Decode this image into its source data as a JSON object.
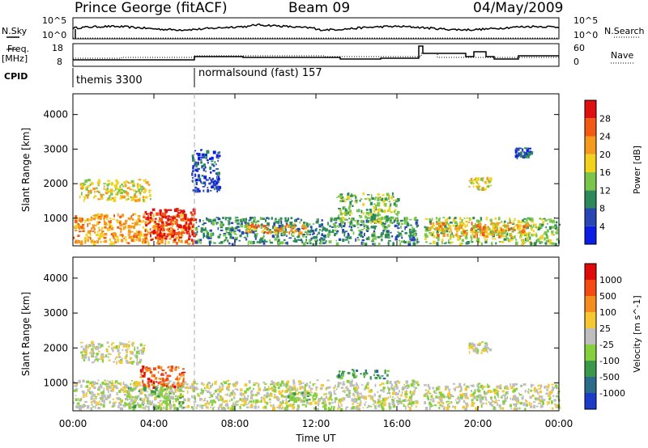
{
  "header": {
    "station": "Prince George (fitACF)",
    "beam": "Beam 09",
    "date": "04/May/2009"
  },
  "side_labels": {
    "nsky": "N.Sky",
    "nsearch": "N.Search",
    "freq": "Freq.",
    "freq_unit": "[MHz]",
    "nave": "Nave",
    "cpid": "CPID"
  },
  "noise_axis": {
    "left_ticks": [
      "10^5",
      "10^0"
    ],
    "right_ticks": [
      "10^5",
      "10^0"
    ]
  },
  "freq_axis": {
    "left_ticks": [
      "18",
      "8"
    ],
    "right_ticks": [
      "60",
      "0"
    ]
  },
  "cpid_labels": [
    "themis 3300",
    "normalsound (fast) 157"
  ],
  "colors": {
    "scatter_blue": "#1c3fc8",
    "ground_grey": "#bebebe",
    "line": "#000000"
  },
  "chart_data": [
    {
      "type": "heatmap",
      "title": "Prince George (fitACF) Beam 09 04/May/2009",
      "xlabel": "Time UT",
      "ylabel": "Slant Range [km]",
      "x_ticks": [
        "00:00",
        "04:00",
        "08:00",
        "12:00",
        "16:00",
        "20:00",
        "00:00"
      ],
      "y_ticks": [
        1000,
        2000,
        3000,
        4000
      ],
      "xlim_hours": [
        0,
        24
      ],
      "ylim_km": [
        200,
        4600
      ],
      "colorbar": {
        "label": "Power [dB]",
        "ticks": [
          "4",
          "8",
          "12",
          "16",
          "20",
          "24",
          "28"
        ],
        "colors": [
          "#0b1ee6",
          "#2846b4",
          "#2f8a5a",
          "#7ac64a",
          "#f2d21c",
          "#f59a1c",
          "#f25a14",
          "#e01010"
        ]
      },
      "regions": [
        {
          "t0": 0.0,
          "t1": 6.0,
          "r0": 280,
          "r1": 1150,
          "level": 5
        },
        {
          "t0": 3.5,
          "t1": 6.0,
          "r0": 400,
          "r1": 1300,
          "level": 7
        },
        {
          "t0": 0.3,
          "t1": 3.8,
          "r0": 1550,
          "r1": 2150,
          "level": 4
        },
        {
          "t0": 6.0,
          "t1": 17.0,
          "r0": 280,
          "r1": 1050,
          "level": 2
        },
        {
          "t0": 8.5,
          "t1": 11.5,
          "r0": 580,
          "r1": 850,
          "level": 5
        },
        {
          "t0": 13.0,
          "t1": 16.0,
          "r0": 900,
          "r1": 1750,
          "level": 3
        },
        {
          "t0": 17.3,
          "t1": 24.0,
          "r0": 280,
          "r1": 1050,
          "level": 3
        },
        {
          "t0": 17.5,
          "t1": 22.5,
          "r0": 500,
          "r1": 900,
          "level": 5
        },
        {
          "t0": 19.5,
          "t1": 20.6,
          "r0": 1850,
          "r1": 2200,
          "level": 4
        },
        {
          "t0": 5.8,
          "t1": 7.2,
          "r0": 1800,
          "r1": 3000,
          "level": 1
        },
        {
          "t0": 21.8,
          "t1": 22.6,
          "r0": 2800,
          "r1": 3050,
          "level": 1
        }
      ]
    },
    {
      "type": "heatmap",
      "xlabel": "Time UT",
      "ylabel": "Slant Range [km]",
      "x_ticks": [
        "00:00",
        "04:00",
        "08:00",
        "12:00",
        "16:00",
        "20:00",
        "00:00"
      ],
      "y_ticks": [
        1000,
        2000,
        3000,
        4000
      ],
      "xlim_hours": [
        0,
        24
      ],
      "ylim_km": [
        200,
        4600
      ],
      "colorbar": {
        "label": "Velocity [m s^-1]",
        "ticks": [
          "1000",
          "500",
          "100",
          "25",
          "-25",
          "-100",
          "-500",
          "-1000"
        ],
        "colors": [
          "#1c3cc8",
          "#2a6c8a",
          "#3a9a4a",
          "#86d040",
          "#bebebe",
          "#f5c832",
          "#f58c1e",
          "#f54a14",
          "#e00a0a"
        ]
      },
      "regions": [
        {
          "t0": 0.0,
          "t1": 17.0,
          "r0": 280,
          "r1": 1100,
          "level": 4
        },
        {
          "t0": 3.3,
          "t1": 5.5,
          "r0": 900,
          "r1": 1500,
          "level": 7
        },
        {
          "t0": 2.5,
          "t1": 5.5,
          "r0": 300,
          "r1": 900,
          "level": 3
        },
        {
          "t0": 0.3,
          "t1": 3.5,
          "r0": 1600,
          "r1": 2200,
          "level": 4
        },
        {
          "t0": 10.5,
          "t1": 12.0,
          "r0": 500,
          "r1": 750,
          "level": 3
        },
        {
          "t0": 13.0,
          "t1": 15.5,
          "r0": 1150,
          "r1": 1400,
          "level": 2
        },
        {
          "t0": 17.3,
          "t1": 24.0,
          "r0": 280,
          "r1": 1000,
          "level": 4
        },
        {
          "t0": 19.5,
          "t1": 20.6,
          "r0": 1850,
          "r1": 2200,
          "level": 4
        }
      ]
    }
  ]
}
